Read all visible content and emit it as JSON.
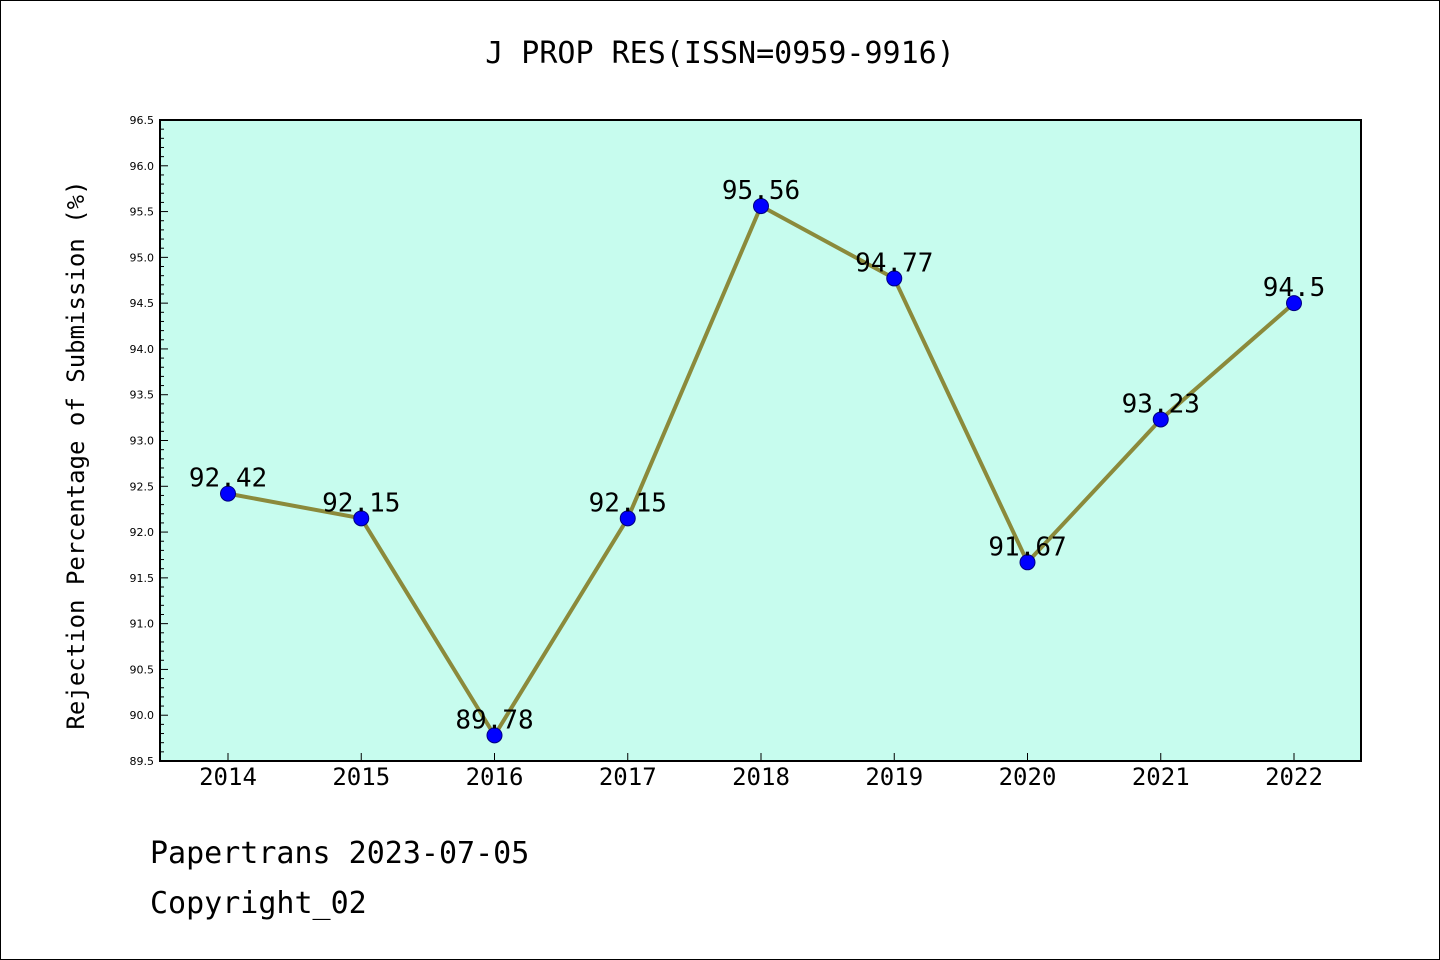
{
  "chart_data": {
    "type": "line",
    "title": "J PROP RES(ISSN=0959-9916)",
    "xlabel": "",
    "ylabel": "Rejection Percentage of Submission (%)",
    "categories": [
      "2014",
      "2015",
      "2016",
      "2017",
      "2018",
      "2019",
      "2020",
      "2021",
      "2022"
    ],
    "values": [
      92.42,
      92.15,
      89.78,
      92.15,
      95.56,
      94.77,
      91.67,
      93.23,
      94.5
    ],
    "data_labels": [
      "92.42",
      "92.15",
      "89.78",
      "92.15",
      "95.56",
      "94.77",
      "91.67",
      "93.23",
      "94.5"
    ],
    "ylim": [
      89.5,
      96.5
    ],
    "yticks": [
      "89.5",
      "90.0",
      "90.5",
      "91.0",
      "91.5",
      "92.0",
      "92.5",
      "93.0",
      "93.5",
      "94.0",
      "94.5",
      "95.0",
      "95.5",
      "96.0",
      "96.5"
    ],
    "grid": false,
    "legend": "none",
    "colors": {
      "plot_background": "#c7fcee",
      "line": "#8b8a3b",
      "marker": "#0000ff",
      "marker_edge": "#000080",
      "axes": "#000000"
    }
  },
  "footer": {
    "line1": "Papertrans 2023-07-05",
    "line2": "Copyright_02"
  }
}
